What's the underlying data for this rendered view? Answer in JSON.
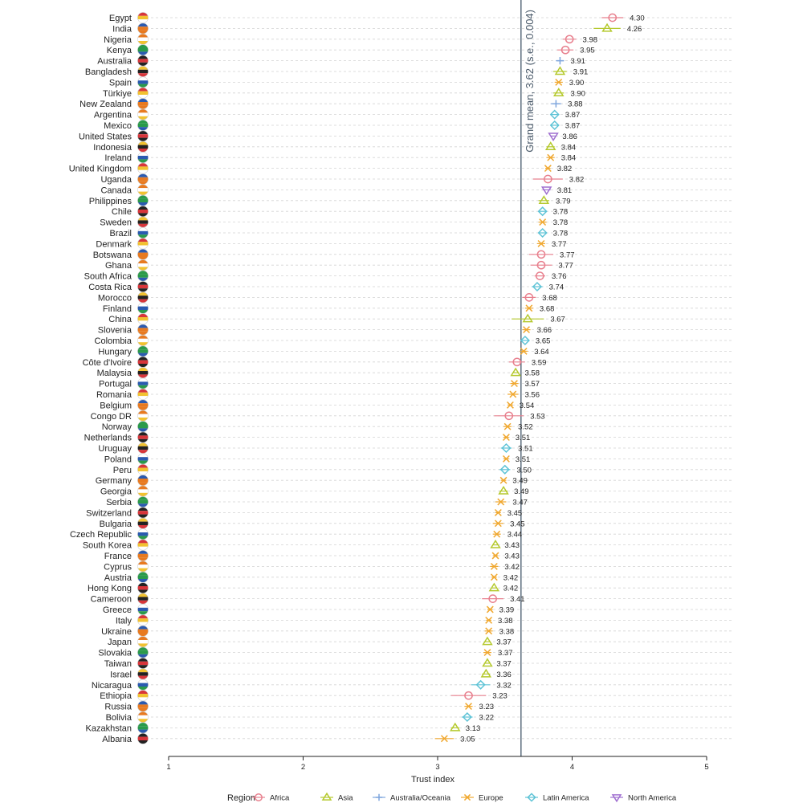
{
  "chart_data": {
    "type": "scatter",
    "xlabel": "Trust index",
    "xlim": [
      1,
      5
    ],
    "x_ticks": [
      "1",
      "2",
      "3",
      "4",
      "5"
    ],
    "reference_line": {
      "value": 3.62,
      "label": "Grand mean, 3.62 (s.e., 0.004)"
    },
    "legend": {
      "title": "Region",
      "placement": "bottom",
      "entries": [
        {
          "name": "Africa",
          "marker": "circle",
          "color": "#e8808e"
        },
        {
          "name": "Asia",
          "marker": "triangle-up",
          "color": "#b5c92e"
        },
        {
          "name": "Australia/Oceania",
          "marker": "plus",
          "color": "#7fa6dd"
        },
        {
          "name": "Europe",
          "marker": "x",
          "color": "#f0a830"
        },
        {
          "name": "Latin America",
          "marker": "diamond",
          "color": "#5ec3d6"
        },
        {
          "name": "North America",
          "marker": "triangle-down",
          "color": "#a070d0"
        }
      ]
    },
    "points": [
      {
        "country": "Egypt",
        "value": 4.3,
        "label": "4.30",
        "region": "Africa",
        "ci": [
          4.22,
          4.38
        ],
        "flag": "egypt-flag-icon"
      },
      {
        "country": "India",
        "value": 4.26,
        "label": "4.26",
        "region": "Asia",
        "ci": [
          4.16,
          4.36
        ],
        "flag": "india-flag-icon"
      },
      {
        "country": "Nigeria",
        "value": 3.98,
        "label": "3.98",
        "region": "Africa",
        "ci": [
          3.93,
          4.03
        ],
        "flag": "nigeria-flag-icon"
      },
      {
        "country": "Kenya",
        "value": 3.95,
        "label": "3.95",
        "region": "Africa",
        "ci": [
          3.89,
          4.01
        ],
        "flag": "kenya-flag-icon"
      },
      {
        "country": "Australia",
        "value": 3.91,
        "label": "3.91",
        "region": "Australia/Oceania",
        "ci": [
          3.88,
          3.94
        ],
        "flag": "australia-flag-icon"
      },
      {
        "country": "Bangladesh",
        "value": 3.91,
        "label": "3.91",
        "region": "Asia",
        "ci": [
          3.86,
          3.96
        ],
        "flag": "bangladesh-flag-icon"
      },
      {
        "country": "Spain",
        "value": 3.9,
        "label": "3.90",
        "region": "Europe",
        "ci": [
          3.87,
          3.93
        ],
        "flag": "spain-flag-icon"
      },
      {
        "country": "Türkiye",
        "value": 3.9,
        "label": "3.90",
        "region": "Asia",
        "ci": [
          3.86,
          3.94
        ],
        "flag": "turkiye-flag-icon"
      },
      {
        "country": "New Zealand",
        "value": 3.88,
        "label": "3.88",
        "region": "Australia/Oceania",
        "ci": [
          3.84,
          3.92
        ],
        "flag": "new-zealand-flag-icon"
      },
      {
        "country": "Argentina",
        "value": 3.87,
        "label": "3.87",
        "region": "Latin America",
        "ci": [
          3.84,
          3.9
        ],
        "flag": "argentina-flag-icon"
      },
      {
        "country": "Mexico",
        "value": 3.87,
        "label": "3.87",
        "region": "Latin America",
        "ci": [
          3.84,
          3.9
        ],
        "flag": "mexico-flag-icon"
      },
      {
        "country": "United States",
        "value": 3.86,
        "label": "3.86",
        "region": "North America",
        "ci": [
          3.84,
          3.88
        ],
        "flag": "united-states-flag-icon"
      },
      {
        "country": "Indonesia",
        "value": 3.84,
        "label": "3.84",
        "region": "Asia",
        "ci": [
          3.81,
          3.87
        ],
        "flag": "indonesia-flag-icon"
      },
      {
        "country": "Ireland",
        "value": 3.84,
        "label": "3.84",
        "region": "Europe",
        "ci": [
          3.81,
          3.87
        ],
        "flag": "ireland-flag-icon"
      },
      {
        "country": "United Kingdom",
        "value": 3.82,
        "label": "3.82",
        "region": "Europe",
        "ci": [
          3.8,
          3.84
        ],
        "flag": "united-kingdom-flag-icon"
      },
      {
        "country": "Uganda",
        "value": 3.82,
        "label": "3.82",
        "region": "Africa",
        "ci": [
          3.71,
          3.93
        ],
        "flag": "uganda-flag-icon"
      },
      {
        "country": "Canada",
        "value": 3.81,
        "label": "3.81",
        "region": "North America",
        "ci": [
          3.78,
          3.84
        ],
        "flag": "canada-flag-icon"
      },
      {
        "country": "Philippines",
        "value": 3.79,
        "label": "3.79",
        "region": "Asia",
        "ci": [
          3.75,
          3.83
        ],
        "flag": "philippines-flag-icon"
      },
      {
        "country": "Chile",
        "value": 3.78,
        "label": "3.78",
        "region": "Latin America",
        "ci": [
          3.75,
          3.81
        ],
        "flag": "chile-flag-icon"
      },
      {
        "country": "Sweden",
        "value": 3.78,
        "label": "3.78",
        "region": "Europe",
        "ci": [
          3.75,
          3.81
        ],
        "flag": "sweden-flag-icon"
      },
      {
        "country": "Brazil",
        "value": 3.78,
        "label": "3.78",
        "region": "Latin America",
        "ci": [
          3.75,
          3.81
        ],
        "flag": "brazil-flag-icon"
      },
      {
        "country": "Denmark",
        "value": 3.77,
        "label": "3.77",
        "region": "Europe",
        "ci": [
          3.74,
          3.8
        ],
        "flag": "denmark-flag-icon"
      },
      {
        "country": "Botswana",
        "value": 3.77,
        "label": "3.77",
        "region": "Africa",
        "ci": [
          3.68,
          3.86
        ],
        "flag": "botswana-flag-icon"
      },
      {
        "country": "Ghana",
        "value": 3.77,
        "label": "3.77",
        "region": "Africa",
        "ci": [
          3.69,
          3.85
        ],
        "flag": "ghana-flag-icon"
      },
      {
        "country": "South Africa",
        "value": 3.76,
        "label": "3.76",
        "region": "Africa",
        "ci": [
          3.72,
          3.8
        ],
        "flag": "south-africa-flag-icon"
      },
      {
        "country": "Costa Rica",
        "value": 3.74,
        "label": "3.74",
        "region": "Latin America",
        "ci": [
          3.7,
          3.78
        ],
        "flag": "costa-rica-flag-icon"
      },
      {
        "country": "Morocco",
        "value": 3.68,
        "label": "3.68",
        "region": "Africa",
        "ci": [
          3.63,
          3.73
        ],
        "flag": "morocco-flag-icon"
      },
      {
        "country": "Finland",
        "value": 3.68,
        "label": "3.68",
        "region": "Europe",
        "ci": [
          3.65,
          3.71
        ],
        "flag": "finland-flag-icon"
      },
      {
        "country": "China",
        "value": 3.67,
        "label": "3.67",
        "region": "Asia",
        "ci": [
          3.55,
          3.79
        ],
        "flag": "china-flag-icon"
      },
      {
        "country": "Slovenia",
        "value": 3.66,
        "label": "3.66",
        "region": "Europe",
        "ci": [
          3.63,
          3.69
        ],
        "flag": "slovenia-flag-icon"
      },
      {
        "country": "Colombia",
        "value": 3.65,
        "label": "3.65",
        "region": "Latin America",
        "ci": [
          3.62,
          3.68
        ],
        "flag": "colombia-flag-icon"
      },
      {
        "country": "Hungary",
        "value": 3.64,
        "label": "3.64",
        "region": "Europe",
        "ci": [
          3.61,
          3.67
        ],
        "flag": "hungary-flag-icon"
      },
      {
        "country": "Côte d'Ivoire",
        "value": 3.59,
        "label": "3.59",
        "region": "Africa",
        "ci": [
          3.53,
          3.65
        ],
        "flag": "cote-divoire-flag-icon"
      },
      {
        "country": "Malaysia",
        "value": 3.58,
        "label": "3.58",
        "region": "Asia",
        "ci": [
          3.56,
          3.6
        ],
        "flag": "malaysia-flag-icon"
      },
      {
        "country": "Portugal",
        "value": 3.57,
        "label": "3.57",
        "region": "Europe",
        "ci": [
          3.54,
          3.6
        ],
        "flag": "portugal-flag-icon"
      },
      {
        "country": "Romania",
        "value": 3.56,
        "label": "3.56",
        "region": "Europe",
        "ci": [
          3.52,
          3.6
        ],
        "flag": "romania-flag-icon"
      },
      {
        "country": "Belgium",
        "value": 3.54,
        "label": "3.54",
        "region": "Europe",
        "ci": [
          3.52,
          3.56
        ],
        "flag": "belgium-flag-icon"
      },
      {
        "country": "Congo DR",
        "value": 3.53,
        "label": "3.53",
        "region": "Africa",
        "ci": [
          3.42,
          3.64
        ],
        "flag": "congo-dr-flag-icon"
      },
      {
        "country": "Norway",
        "value": 3.52,
        "label": "3.52",
        "region": "Europe",
        "ci": [
          3.49,
          3.55
        ],
        "flag": "norway-flag-icon"
      },
      {
        "country": "Netherlands",
        "value": 3.51,
        "label": "3.51",
        "region": "Europe",
        "ci": [
          3.49,
          3.53
        ],
        "flag": "netherlands-flag-icon"
      },
      {
        "country": "Uruguay",
        "value": 3.51,
        "label": "3.51",
        "region": "Latin America",
        "ci": [
          3.47,
          3.55
        ],
        "flag": "uruguay-flag-icon"
      },
      {
        "country": "Poland",
        "value": 3.51,
        "label": "3.51",
        "region": "Europe",
        "ci": [
          3.49,
          3.53
        ],
        "flag": "poland-flag-icon"
      },
      {
        "country": "Peru",
        "value": 3.5,
        "label": "3.50",
        "region": "Latin America",
        "ci": [
          3.46,
          3.54
        ],
        "flag": "peru-flag-icon"
      },
      {
        "country": "Germany",
        "value": 3.49,
        "label": "3.49",
        "region": "Europe",
        "ci": [
          3.47,
          3.51
        ],
        "flag": "germany-flag-icon"
      },
      {
        "country": "Georgia",
        "value": 3.49,
        "label": "3.49",
        "region": "Asia",
        "ci": [
          3.46,
          3.52
        ],
        "flag": "georgia-flag-icon"
      },
      {
        "country": "Serbia",
        "value": 3.47,
        "label": "3.47",
        "region": "Europe",
        "ci": [
          3.43,
          3.51
        ],
        "flag": "serbia-flag-icon"
      },
      {
        "country": "Switzerland",
        "value": 3.45,
        "label": "3.45",
        "region": "Europe",
        "ci": [
          3.43,
          3.47
        ],
        "flag": "switzerland-flag-icon"
      },
      {
        "country": "Bulgaria",
        "value": 3.45,
        "label": "3.45",
        "region": "Europe",
        "ci": [
          3.41,
          3.49
        ],
        "flag": "bulgaria-flag-icon"
      },
      {
        "country": "Czech Republic",
        "value": 3.44,
        "label": "3.44",
        "region": "Europe",
        "ci": [
          3.41,
          3.47
        ],
        "flag": "czech-republic-flag-icon"
      },
      {
        "country": "South Korea",
        "value": 3.43,
        "label": "3.43",
        "region": "Asia",
        "ci": [
          3.41,
          3.45
        ],
        "flag": "south-korea-flag-icon"
      },
      {
        "country": "France",
        "value": 3.43,
        "label": "3.43",
        "region": "Europe",
        "ci": [
          3.41,
          3.45
        ],
        "flag": "france-flag-icon"
      },
      {
        "country": "Cyprus",
        "value": 3.42,
        "label": "3.42",
        "region": "Europe",
        "ci": [
          3.39,
          3.45
        ],
        "flag": "cyprus-flag-icon"
      },
      {
        "country": "Austria",
        "value": 3.42,
        "label": "3.42",
        "region": "Europe",
        "ci": [
          3.4,
          3.44
        ],
        "flag": "austria-flag-icon"
      },
      {
        "country": "Hong Kong",
        "value": 3.42,
        "label": "3.42",
        "region": "Asia",
        "ci": [
          3.4,
          3.44
        ],
        "flag": "hong-kong-flag-icon"
      },
      {
        "country": "Cameroon",
        "value": 3.41,
        "label": "3.41",
        "region": "Africa",
        "ci": [
          3.33,
          3.49
        ],
        "flag": "cameroon-flag-icon"
      },
      {
        "country": "Greece",
        "value": 3.39,
        "label": "3.39",
        "region": "Europe",
        "ci": [
          3.37,
          3.41
        ],
        "flag": "greece-flag-icon"
      },
      {
        "country": "Italy",
        "value": 3.38,
        "label": "3.38",
        "region": "Europe",
        "ci": [
          3.36,
          3.4
        ],
        "flag": "italy-flag-icon"
      },
      {
        "country": "Ukraine",
        "value": 3.38,
        "label": "3.38",
        "region": "Europe",
        "ci": [
          3.35,
          3.41
        ],
        "flag": "ukraine-flag-icon"
      },
      {
        "country": "Japan",
        "value": 3.37,
        "label": "3.37",
        "region": "Asia",
        "ci": [
          3.35,
          3.39
        ],
        "flag": "japan-flag-icon"
      },
      {
        "country": "Slovakia",
        "value": 3.37,
        "label": "3.37",
        "region": "Europe",
        "ci": [
          3.34,
          3.4
        ],
        "flag": "slovakia-flag-icon"
      },
      {
        "country": "Taiwan",
        "value": 3.37,
        "label": "3.37",
        "region": "Asia",
        "ci": [
          3.35,
          3.39
        ],
        "flag": "taiwan-flag-icon"
      },
      {
        "country": "Israel",
        "value": 3.36,
        "label": "3.36",
        "region": "Asia",
        "ci": [
          3.33,
          3.39
        ],
        "flag": "israel-flag-icon"
      },
      {
        "country": "Nicaragua",
        "value": 3.32,
        "label": "3.32",
        "region": "Latin America",
        "ci": [
          3.25,
          3.39
        ],
        "flag": "nicaragua-flag-icon"
      },
      {
        "country": "Ethiopia",
        "value": 3.23,
        "label": "3.23",
        "region": "Africa",
        "ci": [
          3.1,
          3.36
        ],
        "flag": "ethiopia-flag-icon"
      },
      {
        "country": "Russia",
        "value": 3.23,
        "label": "3.23",
        "region": "Europe",
        "ci": [
          3.2,
          3.26
        ],
        "flag": "russia-flag-icon"
      },
      {
        "country": "Bolivia",
        "value": 3.22,
        "label": "3.22",
        "region": "Latin America",
        "ci": [
          3.18,
          3.26
        ],
        "flag": "bolivia-flag-icon"
      },
      {
        "country": "Kazakhstan",
        "value": 3.13,
        "label": "3.13",
        "region": "Asia",
        "ci": [
          3.1,
          3.16
        ],
        "flag": "kazakhstan-flag-icon"
      },
      {
        "country": "Albania",
        "value": 3.05,
        "label": "3.05",
        "region": "Europe",
        "ci": [
          2.98,
          3.12
        ],
        "flag": "albania-flag-icon"
      }
    ]
  }
}
